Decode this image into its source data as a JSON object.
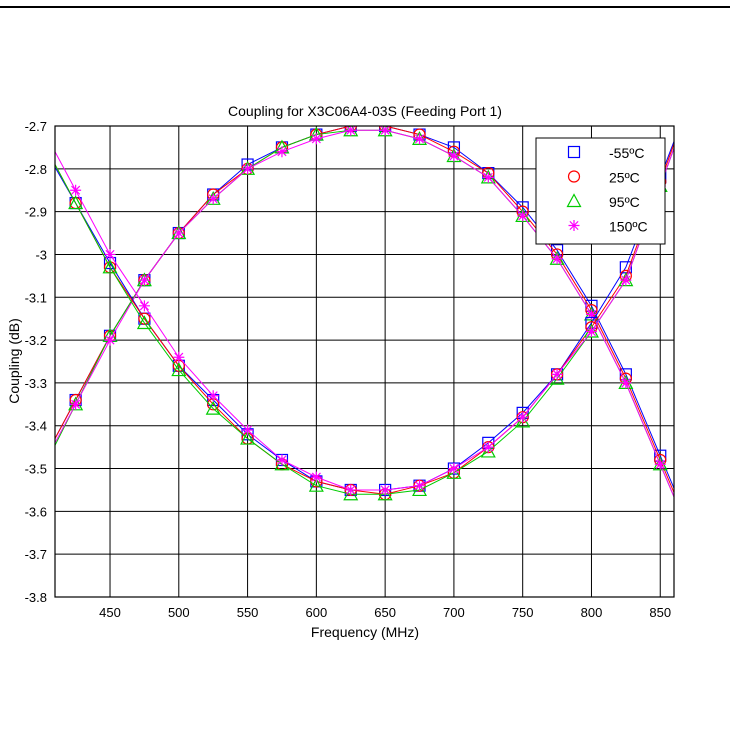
{
  "chart_data": {
    "type": "line",
    "title": "Coupling for X3C06A4-03S (Feeding Port 1)",
    "xlabel": "Frequency (MHz)",
    "ylabel": "Coupling (dB)",
    "xlim": [
      410,
      860
    ],
    "ylim": [
      -3.8,
      -2.7
    ],
    "xticks": [
      450,
      500,
      550,
      600,
      650,
      700,
      750,
      800,
      850
    ],
    "yticks": [
      -3.8,
      -3.7,
      -3.6,
      -3.5,
      -3.4,
      -3.3,
      -3.2,
      -3.1,
      -3.0,
      -2.9,
      -2.8,
      -2.7
    ],
    "xtick_labels": [
      "450",
      "500",
      "550",
      "600",
      "650",
      "700",
      "750",
      "800",
      "850"
    ],
    "ytick_labels": [
      "-3.8",
      "-3.7",
      "-3.6",
      "-3.5",
      "-3.4",
      "-3.3",
      "-3.2",
      "-3.1",
      "-3",
      "-2.9",
      "-2.8",
      "-2.7"
    ],
    "grid": true,
    "legend_position": "top-right",
    "x": [
      425,
      450,
      475,
      500,
      525,
      550,
      575,
      600,
      625,
      650,
      675,
      700,
      725,
      750,
      775,
      800,
      825,
      850
    ],
    "series": [
      {
        "name": "-55ºC",
        "marker": "square",
        "color": "#0000ff",
        "values": [
          -3.34,
          -3.19,
          -3.06,
          -2.95,
          -2.86,
          -2.79,
          -2.75,
          -2.72,
          -2.7,
          -2.7,
          -2.72,
          -2.75,
          -2.81,
          -2.89,
          -2.99,
          -3.12,
          -3.28,
          -3.47
        ]
      },
      {
        "name": "25ºC",
        "marker": "circle",
        "color": "#ff0000",
        "values": [
          -3.34,
          -3.19,
          -3.06,
          -2.95,
          -2.86,
          -2.8,
          -2.75,
          -2.72,
          -2.7,
          -2.7,
          -2.72,
          -2.76,
          -2.81,
          -2.9,
          -3.0,
          -3.13,
          -3.29,
          -3.48
        ]
      },
      {
        "name": "95ºC",
        "marker": "triangle",
        "color": "#00cc00",
        "values": [
          -3.35,
          -3.19,
          -3.06,
          -2.95,
          -2.87,
          -2.8,
          -2.75,
          -2.72,
          -2.71,
          -2.71,
          -2.73,
          -2.77,
          -2.82,
          -2.91,
          -3.01,
          -3.14,
          -3.3,
          -3.49
        ]
      },
      {
        "name": "150ºC",
        "marker": "asterisk",
        "color": "#ff00ff",
        "values": [
          -3.35,
          -3.2,
          -3.06,
          -2.95,
          -2.87,
          -2.8,
          -2.76,
          -2.73,
          -2.71,
          -2.71,
          -2.73,
          -2.77,
          -2.82,
          -2.91,
          -3.01,
          -3.14,
          -3.3,
          -3.49
        ]
      },
      {
        "name": "-55ºC",
        "marker": "square",
        "color": "#0000ff",
        "values": [
          -2.88,
          -3.02,
          -3.15,
          -3.26,
          -3.34,
          -3.42,
          -3.48,
          -3.53,
          -3.55,
          -3.55,
          -3.54,
          -3.5,
          -3.44,
          -3.37,
          -3.28,
          -3.16,
          -3.03,
          -2.82
        ]
      },
      {
        "name": "25ºC",
        "marker": "circle",
        "color": "#ff0000",
        "values": [
          -2.88,
          -3.03,
          -3.15,
          -3.26,
          -3.35,
          -3.43,
          -3.49,
          -3.53,
          -3.55,
          -3.56,
          -3.54,
          -3.51,
          -3.45,
          -3.38,
          -3.28,
          -3.17,
          -3.05,
          -2.83
        ]
      },
      {
        "name": "95ºC",
        "marker": "triangle",
        "color": "#00cc00",
        "values": [
          -2.88,
          -3.03,
          -3.16,
          -3.27,
          -3.36,
          -3.43,
          -3.49,
          -3.54,
          -3.56,
          -3.56,
          -3.55,
          -3.51,
          -3.46,
          -3.39,
          -3.29,
          -3.18,
          -3.06,
          -2.84
        ]
      },
      {
        "name": "150ºC",
        "marker": "asterisk",
        "color": "#ff00ff",
        "values": [
          -2.85,
          -3.0,
          -3.12,
          -3.24,
          -3.33,
          -3.41,
          -3.48,
          -3.52,
          -3.55,
          -3.55,
          -3.54,
          -3.5,
          -3.45,
          -3.38,
          -3.28,
          -3.18,
          -3.06,
          -2.84
        ]
      }
    ]
  }
}
